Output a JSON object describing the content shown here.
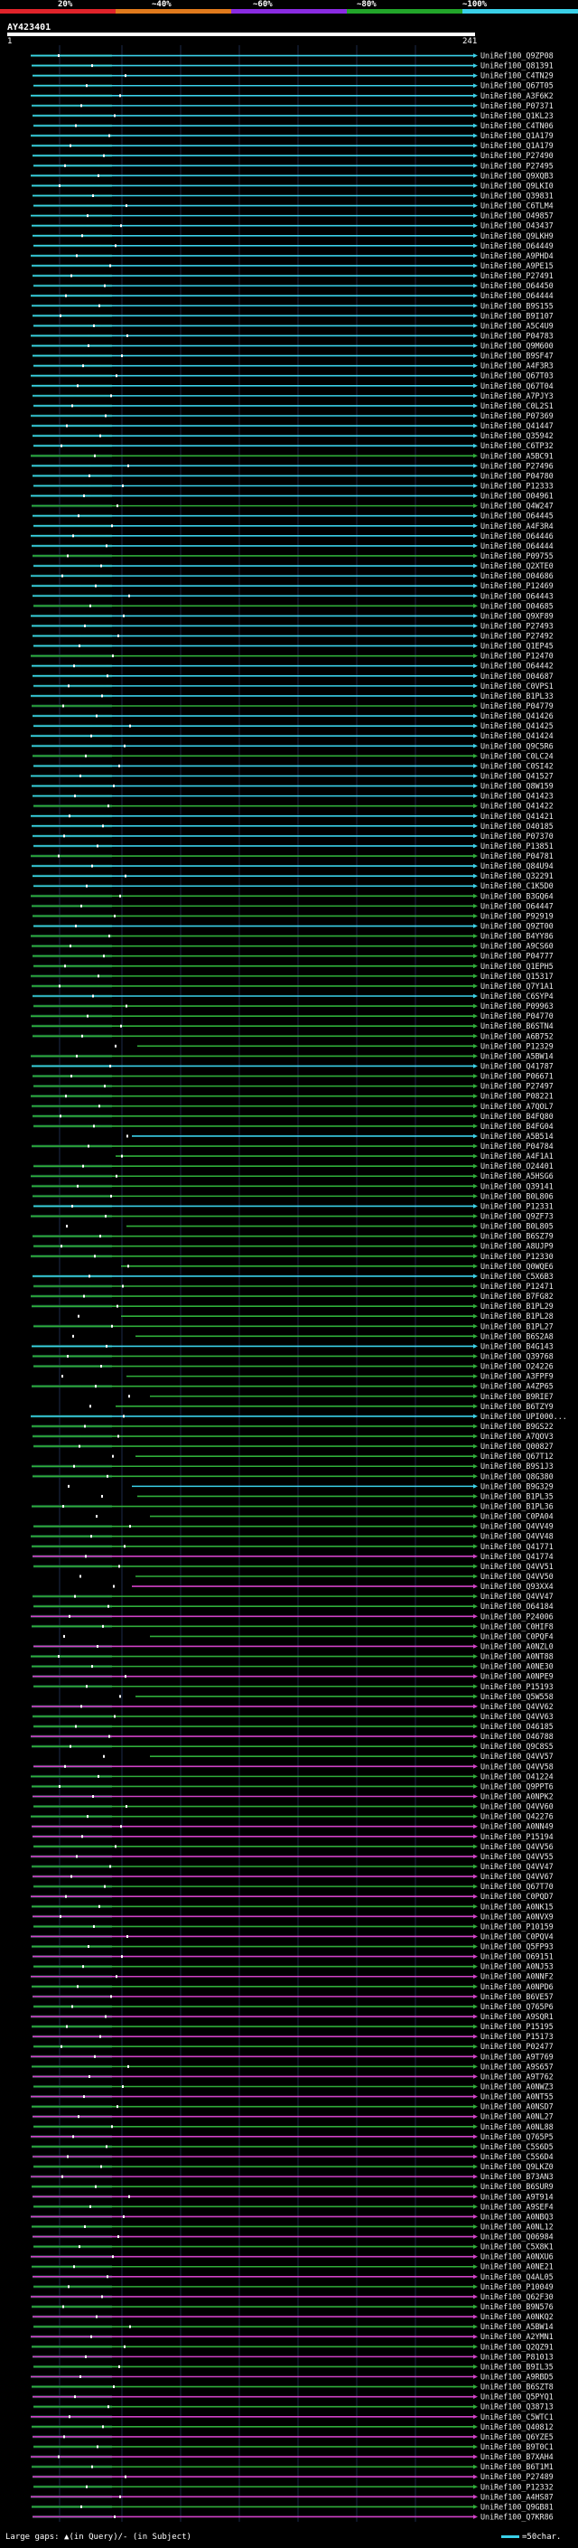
{
  "scale": {
    "labels": [
      "20%",
      "~40%",
      "~60%",
      "~80%",
      "~100%"
    ],
    "colors": [
      "#e0232a",
      "#e07a1c",
      "#8a2be2",
      "#22a52a",
      "#3ad0e8"
    ]
  },
  "query": {
    "name": "AY423401",
    "start": "1",
    "end": "241"
  },
  "colors": {
    "cyan": "#3ad0e8",
    "green": "#2fae3a",
    "magenta": "#d240c8",
    "dark": "#0d3a2a",
    "axis": "#1d2a4a"
  },
  "hits": [
    "UniRef100_Q9ZP08",
    "UniRef100_Q81391",
    "UniRef100_C4TN29",
    "UniRef100_Q67T05",
    "UniRef100_A3F6K2",
    "UniRef100_P07371",
    "UniRef100_Q1KL23",
    "UniRef100_C4TN06",
    "UniRef100_Q1A179",
    "UniRef100_Q1A179",
    "UniRef100_P27490",
    "UniRef100_P27495",
    "UniRef100_Q9XQB3",
    "UniRef100_Q9LKI0",
    "UniRef100_Q39831",
    "UniRef100_C6TLM4",
    "UniRef100_O49857",
    "UniRef100_O43437",
    "UniRef100_Q9LKH9",
    "UniRef100_O64449",
    "UniRef100_A9PHD4",
    "UniRef100_A9PE15",
    "UniRef100_P27491",
    "UniRef100_O64450",
    "UniRef100_O64444",
    "UniRef100_B9S155",
    "UniRef100_B9I107",
    "UniRef100_A5C4U9",
    "UniRef100_P04783",
    "UniRef100_Q9M600",
    "UniRef100_B9SF47",
    "UniRef100_A4F3R3",
    "UniRef100_Q67T03",
    "UniRef100_Q67T04",
    "UniRef100_A7PJY3",
    "UniRef100_C0L2S1",
    "UniRef100_P07369",
    "UniRef100_Q41447",
    "UniRef100_Q35942",
    "UniRef100_C6TP32",
    "UniRef100_A5BC91",
    "UniRef100_P27496",
    "UniRef100_P04780",
    "UniRef100_P12333",
    "UniRef100_O04961",
    "UniRef100_Q4W247",
    "UniRef100_O64445",
    "UniRef100_A4F3R4",
    "UniRef100_O64446",
    "UniRef100_O64444",
    "UniRef100_P09755",
    "UniRef100_Q2XTE0",
    "UniRef100_O04686",
    "UniRef100_P12469",
    "UniRef100_O64443",
    "UniRef100_O04685",
    "UniRef100_Q9XF89",
    "UniRef100_P27493",
    "UniRef100_P27492",
    "UniRef100_Q1EP45",
    "UniRef100_P12470",
    "UniRef100_O64442",
    "UniRef100_O04687",
    "UniRef100_C0VPS1",
    "UniRef100_B1PL33",
    "UniRef100_P04779",
    "UniRef100_Q41426",
    "UniRef100_Q41425",
    "UniRef100_Q41424",
    "UniRef100_Q9C5R6",
    "UniRef100_C0LC24",
    "UniRef100_C0SI42",
    "UniRef100_Q41527",
    "UniRef100_Q8W159",
    "UniRef100_Q41423",
    "UniRef100_Q41422",
    "UniRef100_Q41421",
    "UniRef100_O40185",
    "UniRef100_P07370",
    "UniRef100_P13851",
    "UniRef100_P04781",
    "UniRef100_Q84U94",
    "UniRef100_Q32291",
    "UniRef100_C1K5D0",
    "UniRef100_B3GQ64",
    "UniRef100_O64447",
    "UniRef100_P92919",
    "UniRef100_Q9ZT00",
    "UniRef100_B4YY86",
    "UniRef100_A9CS60",
    "UniRef100_P04777",
    "UniRef100_Q1EPH5",
    "UniRef100_Q15317",
    "UniRef100_Q7Y1A1",
    "UniRef100_C6SYP4",
    "UniRef100_P09963",
    "UniRef100_P04770",
    "UniRef100_B6STN4",
    "UniRef100_A6B752",
    "UniRef100_P12329",
    "UniRef100_A5BW14",
    "UniRef100_Q41787",
    "UniRef100_P06671",
    "UniRef100_P27497",
    "UniRef100_P08221",
    "UniRef100_A7QOL7",
    "UniRef100_B4FQ80",
    "UniRef100_B4FG04",
    "UniRef100_A5B514",
    "UniRef100_P04784",
    "UniRef100_A4F1A1",
    "UniRef100_O24401",
    "UniRef100_A5HSG6",
    "UniRef100_Q39141",
    "UniRef100_B0L806",
    "UniRef100_P12331",
    "UniRef100_Q9ZF73",
    "UniRef100_B0L805",
    "UniRef100_B6SZ79",
    "UniRef100_A8UJP9",
    "UniRef100_P12330",
    "UniRef100_Q0WQE6",
    "UniRef100_C5X6B3",
    "UniRef100_P12471",
    "UniRef100_B7FG82",
    "UniRef100_B1PL29",
    "UniRef100_B1PL28",
    "UniRef100_B1PL27",
    "UniRef100_B6S2A8",
    "UniRef100_B4G143",
    "UniRef100_Q39768",
    "UniRef100_O24226",
    "UniRef100_A3FPF9",
    "UniRef100_A4ZP65",
    "UniRef100_B9RIE7",
    "UniRef100_B6TZY9",
    "UniRef100_UPI000...",
    "UniRef100_B9GS22",
    "UniRef100_A7QOV3",
    "UniRef100_Q00827",
    "UniRef100_Q67T12",
    "UniRef100_B9S1J3",
    "UniRef100_Q8G380",
    "UniRef100_B9G329",
    "UniRef100_B1PL35",
    "UniRef100_B1PL36",
    "UniRef100_C0PA04",
    "UniRef100_Q4VV49",
    "UniRef100_Q4VV48",
    "UniRef100_Q41771",
    "UniRef100_Q41774",
    "UniRef100_Q4VV51",
    "UniRef100_Q4VV50",
    "UniRef100_Q93XX4",
    "UniRef100_Q4VV47",
    "UniRef100_O64184",
    "UniRef100_P24006",
    "UniRef100_C0HIF8",
    "UniRef100_C0PQF4",
    "UniRef100_A0NZL0",
    "UniRef100_A0NT88",
    "UniRef100_A0NE30",
    "UniRef100_A0NPE9",
    "UniRef100_P15193",
    "UniRef100_Q5W558",
    "UniRef100_Q4VV62",
    "UniRef100_Q4VV63",
    "UniRef100_O46185",
    "UniRef100_O46788",
    "UniRef100_Q9C8S5",
    "UniRef100_Q4VV57",
    "UniRef100_Q4VV58",
    "UniRef100_O41224",
    "UniRef100_Q9PPT6",
    "UniRef100_A0NPK2",
    "UniRef100_Q4VV60",
    "UniRef100_Q42276",
    "UniRef100_A0NN49",
    "UniRef100_P15194",
    "UniRef100_Q4VV56",
    "UniRef100_Q4VV55",
    "UniRef100_Q4VV47",
    "UniRef100_Q4VV67",
    "UniRef100_Q67T70",
    "UniRef100_C0PQD7",
    "UniRef100_A0NK15",
    "UniRef100_A0NVX9",
    "UniRef100_P10159",
    "UniRef100_C0PQV4",
    "UniRef100_Q5FP93",
    "UniRef100_O69151",
    "UniRef100_A0NJ53",
    "UniRef100_A0NNF2",
    "UniRef100_A0NPD6",
    "UniRef100_B6VE57",
    "UniRef100_Q765P6",
    "UniRef100_A9SQR1",
    "UniRef100_P15195",
    "UniRef100_P15173",
    "UniRef100_P02477",
    "UniRef100_A9T769",
    "UniRef100_A9S657",
    "UniRef100_A9T762",
    "UniRef100_A0NWZ3",
    "UniRef100_A0NT55",
    "UniRef100_A0NSD7",
    "UniRef100_A0NL27",
    "UniRef100_A0NL88",
    "UniRef100_Q765P5",
    "UniRef100_C5S6D5",
    "UniRef100_C5S6D4",
    "UniRef100_Q9LKZ0",
    "UniRef100_B73AN3",
    "UniRef100_B6SUR9",
    "UniRef100_A9T914",
    "UniRef100_A9SEF4",
    "UniRef100_A0NBQ3",
    "UniRef100_A0NL12",
    "UniRef100_Q06984",
    "UniRef100_C5X8K1",
    "UniRef100_A0NXU6",
    "UniRef100_A0NE21",
    "UniRef100_Q4AL05",
    "UniRef100_P10049",
    "UniRef100_Q62F30",
    "UniRef100_B9N576",
    "UniRef100_A0NKQ2",
    "UniRef100_A5BW14",
    "UniRef100_A2YMN1",
    "UniRef100_Q2QZ91",
    "UniRef100_P81013",
    "UniRef100_B9IL35",
    "UniRef100_A9RBD5",
    "UniRef100_B6SZT8",
    "UniRef100_Q5PYQ1",
    "UniRef100_Q38713",
    "UniRef100_C5WTC1",
    "UniRef100_Q40812",
    "UniRef100_Q6YZE5",
    "UniRef100_B9T0C1",
    "UniRef100_B7XAH4",
    "UniRef100_B6T1M1",
    "UniRef100_P27489",
    "UniRef100_P12332",
    "UniRef100_A4HS87",
    "UniRef100_Q9GB81",
    "UniRef100_Q7KR86"
  ],
  "legend": {
    "text": "Large gaps: ▲(in Query)/- (in Subject)",
    "key": "=50char."
  }
}
